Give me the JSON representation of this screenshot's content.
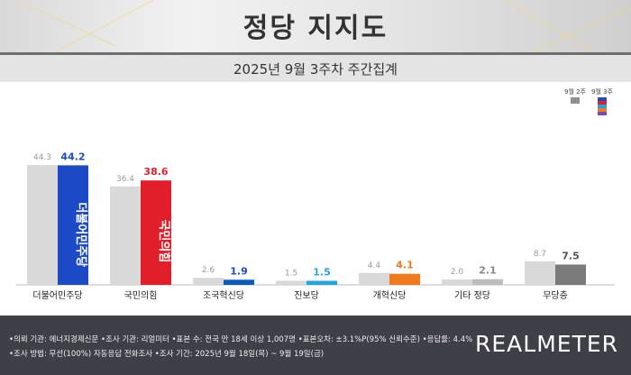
{
  "title": "정당 지지도",
  "subtitle": "2025년 9월 3주차 주간집계",
  "legend": {
    "prev": "9월 2주",
    "curr": "9월 3주"
  },
  "chart_data": {
    "type": "bar",
    "categories": [
      "더불어민주당",
      "국민의힘",
      "조국혁신당",
      "진보당",
      "개혁신당",
      "기타 정당",
      "무당층"
    ],
    "series": [
      {
        "name": "9월 2주",
        "values": [
          44.3,
          36.4,
          2.6,
          1.5,
          4.4,
          2.0,
          8.7
        ]
      },
      {
        "name": "9월 3주",
        "values": [
          44.2,
          38.6,
          1.9,
          1.5,
          4.1,
          2.1,
          7.5
        ]
      }
    ],
    "colors": {
      "prev": "#d9d9d9",
      "curr": [
        "#1d4bc8",
        "#e21e2b",
        "#0a5cb8",
        "#21a7e0",
        "#f07a1e",
        "#bdbdbd",
        "#7a7a7a"
      ],
      "value_label_curr": [
        "#1d4bc8",
        "#e21e2b",
        "#1d4bc8",
        "#21a7e0",
        "#f07a1e",
        "#888888",
        "#555555"
      ]
    },
    "bar_logos": [
      "더불어민주당",
      "국민의힘"
    ],
    "ylim": [
      0,
      50
    ],
    "grid": false
  },
  "footer": {
    "line1": "•의뢰 기관: 에너지경제신문  •조사 기관: 리얼미터  •표본 수: 전국 만 18세 이상 1,007명  •표본오차: ±3.1%P(95% 신뢰수준)  •응답률: 4.4%",
    "line2": "•조사 방법: 무선(100%) 자동응답 전화조사  •조사 기간: 2025년 9월 18일(목) ~ 9월 19일(금)",
    "brand": "REALMETER"
  }
}
